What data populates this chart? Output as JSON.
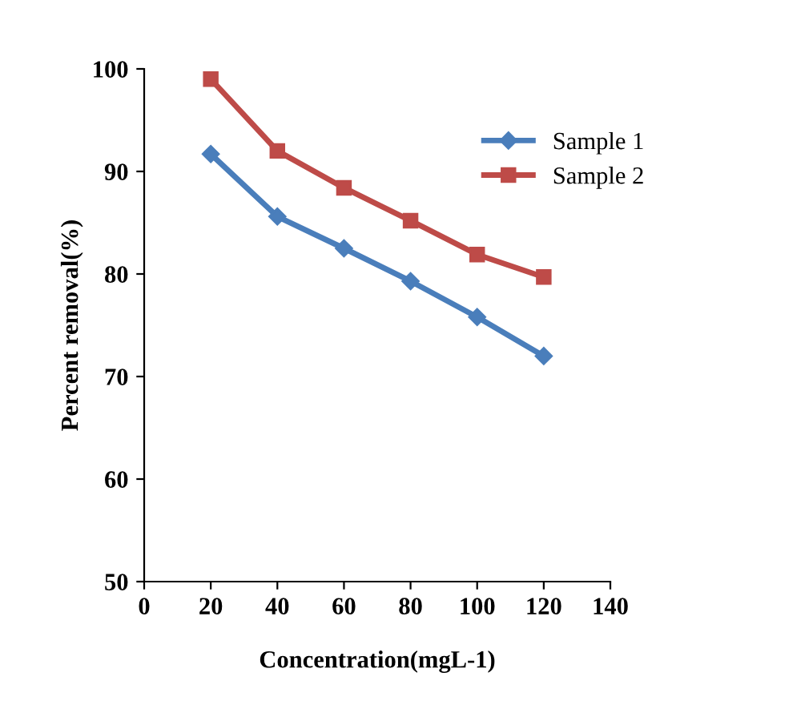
{
  "chart_data": {
    "type": "line",
    "xlabel": "Concentration(mgL-1)",
    "ylabel": "Percent removal(%)",
    "x": [
      20,
      40,
      60,
      80,
      100,
      120
    ],
    "series": [
      {
        "name": "Sample 1",
        "color": "#4a7ebb",
        "marker": "diamond",
        "values": [
          91.7,
          85.6,
          82.5,
          79.3,
          75.8,
          72.0
        ]
      },
      {
        "name": "Sample 2",
        "color": "#be4b48",
        "marker": "square",
        "values": [
          99.0,
          92.0,
          88.4,
          85.2,
          81.9,
          79.7
        ]
      }
    ],
    "xlim": [
      0,
      140
    ],
    "xticks": [
      0,
      20,
      40,
      60,
      80,
      100,
      120,
      140
    ],
    "ylim": [
      50,
      100
    ],
    "yticks": [
      50,
      60,
      70,
      80,
      90,
      100
    ],
    "grid": false,
    "legend": "top right",
    "line_style": "solid"
  }
}
